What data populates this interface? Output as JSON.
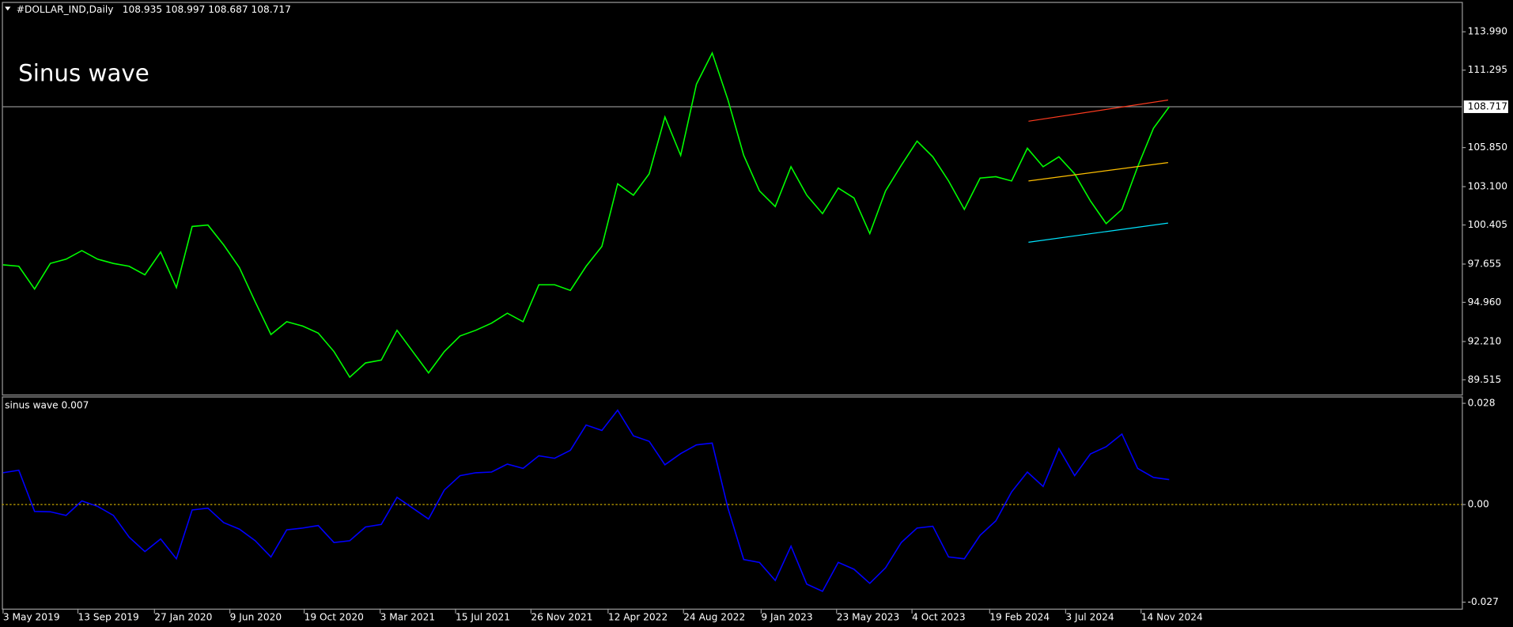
{
  "header": {
    "symbol": "#DOLLAR_IND,Daily",
    "ohlc": [
      108.935,
      108.997,
      108.687,
      108.717
    ]
  },
  "chart_data": [
    {
      "type": "line",
      "annotation": "Sinus wave",
      "x": [
        "2019-05-03",
        "2019-05-31",
        "2019-06-28",
        "2019-07-26",
        "2019-08-23",
        "2019-09-20",
        "2019-10-18",
        "2019-11-15",
        "2019-12-13",
        "2020-01-10",
        "2020-02-07",
        "2020-03-06",
        "2020-04-03",
        "2020-05-01",
        "2020-05-29",
        "2020-06-26",
        "2020-07-24",
        "2020-08-21",
        "2020-09-18",
        "2020-10-16",
        "2020-11-13",
        "2020-12-11",
        "2021-01-08",
        "2021-02-05",
        "2021-03-05",
        "2021-04-02",
        "2021-04-30",
        "2021-05-28",
        "2021-06-25",
        "2021-07-23",
        "2021-08-20",
        "2021-09-17",
        "2021-10-15",
        "2021-11-12",
        "2021-12-10",
        "2022-01-07",
        "2022-02-04",
        "2022-03-04",
        "2022-04-01",
        "2022-04-29",
        "2022-05-27",
        "2022-06-24",
        "2022-07-22",
        "2022-08-19",
        "2022-09-16",
        "2022-10-14",
        "2022-11-11",
        "2022-12-09",
        "2023-01-06",
        "2023-02-03",
        "2023-03-03",
        "2023-03-31",
        "2023-04-28",
        "2023-05-26",
        "2023-06-23",
        "2023-07-21",
        "2023-08-18",
        "2023-09-15",
        "2023-10-13",
        "2023-11-10",
        "2023-12-08",
        "2024-01-05",
        "2024-02-02",
        "2024-03-01",
        "2024-03-29",
        "2024-04-26",
        "2024-05-24",
        "2024-06-21",
        "2024-07-19",
        "2024-08-16",
        "2024-09-13",
        "2024-10-11",
        "2024-11-08",
        "2024-12-06",
        "2025-01-03"
      ],
      "series": [
        {
          "color": "#00ff00",
          "values": [
            97.6,
            97.5,
            95.9,
            97.7,
            98.0,
            98.6,
            98.0,
            97.7,
            97.5,
            96.9,
            98.5,
            96.0,
            100.3,
            100.4,
            99.0,
            97.4,
            95.0,
            92.7,
            93.6,
            93.3,
            92.8,
            91.5,
            89.7,
            90.7,
            90.9,
            93.0,
            91.5,
            90.0,
            91.5,
            92.6,
            93.0,
            93.5,
            94.2,
            93.6,
            96.2,
            96.2,
            95.8,
            97.5,
            98.9,
            103.3,
            102.5,
            104.0,
            108.0,
            105.3,
            110.3,
            112.5,
            109.2,
            105.3,
            102.8,
            101.7,
            104.5,
            102.5,
            101.2,
            103.0,
            102.3,
            99.8,
            102.8,
            104.6,
            106.3,
            105.2,
            103.5,
            101.5,
            103.7,
            103.8,
            103.5,
            105.8,
            104.5,
            105.2,
            104.0,
            102.1,
            100.5,
            101.5,
            104.5,
            107.2,
            108.717
          ]
        }
      ],
      "ylim": [
        88.48,
        116.09
      ],
      "yticks": [
        {
          "value": 113.99,
          "label": "113.990"
        },
        {
          "value": 111.295,
          "label": "111.295"
        },
        {
          "value": 105.85,
          "label": "105.850"
        },
        {
          "value": 103.1,
          "label": "103.100"
        },
        {
          "value": 100.405,
          "label": "100.405"
        },
        {
          "value": 97.655,
          "label": "97.655"
        },
        {
          "value": 94.96,
          "label": "94.960"
        },
        {
          "value": 92.21,
          "label": "92.210"
        },
        {
          "value": 89.515,
          "label": "89.515"
        }
      ],
      "price_line": {
        "value": 108.717,
        "color": "#8c8c8c"
      },
      "trend_lines": [
        {
          "color": "#ff3b1f",
          "x": [
            "2024-04-28",
            "2025-01-01"
          ],
          "values": [
            107.7,
            109.19
          ]
        },
        {
          "color": "#ffc000",
          "x": [
            "2024-04-28",
            "2025-01-01"
          ],
          "values": [
            103.5,
            104.79
          ]
        },
        {
          "color": "#00e5ff",
          "x": [
            "2024-04-28",
            "2025-01-01"
          ],
          "values": [
            99.19,
            100.54
          ]
        }
      ]
    },
    {
      "type": "line",
      "indicator_value": 0.007,
      "x": [
        "2019-05-03",
        "2019-05-31",
        "2019-06-28",
        "2019-07-26",
        "2019-08-23",
        "2019-09-20",
        "2019-10-18",
        "2019-11-15",
        "2019-12-13",
        "2020-01-10",
        "2020-02-07",
        "2020-03-06",
        "2020-04-03",
        "2020-05-01",
        "2020-05-29",
        "2020-06-26",
        "2020-07-24",
        "2020-08-21",
        "2020-09-18",
        "2020-10-16",
        "2020-11-13",
        "2020-12-11",
        "2021-01-08",
        "2021-02-05",
        "2021-03-05",
        "2021-04-02",
        "2021-04-30",
        "2021-05-28",
        "2021-06-25",
        "2021-07-23",
        "2021-08-20",
        "2021-09-17",
        "2021-10-15",
        "2021-11-12",
        "2021-12-10",
        "2022-01-07",
        "2022-02-04",
        "2022-03-04",
        "2022-04-01",
        "2022-04-29",
        "2022-05-27",
        "2022-06-24",
        "2022-07-22",
        "2022-08-19",
        "2022-09-16",
        "2022-10-14",
        "2022-11-11",
        "2022-12-09",
        "2023-01-06",
        "2023-02-03",
        "2023-03-03",
        "2023-03-31",
        "2023-04-28",
        "2023-05-26",
        "2023-06-23",
        "2023-07-21",
        "2023-08-18",
        "2023-09-15",
        "2023-10-13",
        "2023-11-10",
        "2023-12-08",
        "2024-01-05",
        "2024-02-02",
        "2024-03-01",
        "2024-03-29",
        "2024-04-26",
        "2024-05-24",
        "2024-06-21",
        "2024-07-19",
        "2024-08-16",
        "2024-09-13",
        "2024-10-11",
        "2024-11-08",
        "2024-12-06",
        "2025-01-03"
      ],
      "series": [
        {
          "name": "sinus wave",
          "color": "#0000ff",
          "values": [
            0.0088,
            0.0095,
            -0.0019,
            -0.002,
            -0.003,
            0.001,
            -0.0005,
            -0.003,
            -0.009,
            -0.013,
            -0.0095,
            -0.015,
            -0.0015,
            -0.001,
            -0.005,
            -0.0068,
            -0.01,
            -0.0145,
            -0.007,
            -0.0065,
            -0.0058,
            -0.0105,
            -0.01,
            -0.0062,
            -0.0055,
            0.002,
            -0.001,
            -0.004,
            0.004,
            0.008,
            0.0088,
            0.009,
            0.0112,
            0.01,
            0.0135,
            0.0128,
            0.015,
            0.022,
            0.0205,
            0.0261,
            0.019,
            0.0175,
            0.011,
            0.0141,
            0.0165,
            0.017,
            -0.001,
            -0.0152,
            -0.016,
            -0.021,
            -0.0115,
            -0.022,
            -0.024,
            -0.016,
            -0.0179,
            -0.0218,
            -0.0175,
            -0.0105,
            -0.0065,
            -0.006,
            -0.0145,
            -0.015,
            -0.0085,
            -0.0045,
            0.0035,
            0.009,
            0.005,
            0.0155,
            0.008,
            0.014,
            0.016,
            0.0195,
            0.01,
            0.0075,
            0.0069
          ]
        }
      ],
      "ylim": [
        -0.0288,
        0.0299
      ],
      "yticks": [
        0.028,
        {
          "value": 0,
          "label": "0.00"
        },
        -0.027
      ],
      "level_line": {
        "value": 0,
        "color": "#c8a800"
      },
      "xlim": [
        "2019-05-01",
        "2026-06-07"
      ],
      "xticks": [
        {
          "value": "2019-05-03",
          "label": "3 May 2019"
        },
        {
          "value": "2019-09-13",
          "label": "13 Sep 2019"
        },
        {
          "value": "2020-01-27",
          "label": "27 Jan 2020"
        },
        {
          "value": "2020-06-09",
          "label": "9 Jun 2020"
        },
        {
          "value": "2020-10-19",
          "label": "19 Oct 2020"
        },
        {
          "value": "2021-03-03",
          "label": "3 Mar 2021"
        },
        {
          "value": "2021-07-15",
          "label": "15 Jul 2021"
        },
        {
          "value": "2021-11-26",
          "label": "26 Nov 2021"
        },
        {
          "value": "2022-04-12",
          "label": "12 Apr 2022"
        },
        {
          "value": "2022-08-24",
          "label": "24 Aug 2022"
        },
        {
          "value": "2023-01-09",
          "label": "9 Jan 2023"
        },
        {
          "value": "2023-05-23",
          "label": "23 May 2023"
        },
        {
          "value": "2023-10-04",
          "label": "4 Oct 2023"
        },
        {
          "value": "2024-02-19",
          "label": "19 Feb 2024"
        },
        {
          "value": "2024-07-03",
          "label": "3 Jul 2024"
        },
        {
          "value": "2024-11-14",
          "label": "14 Nov 2024"
        }
      ]
    }
  ]
}
